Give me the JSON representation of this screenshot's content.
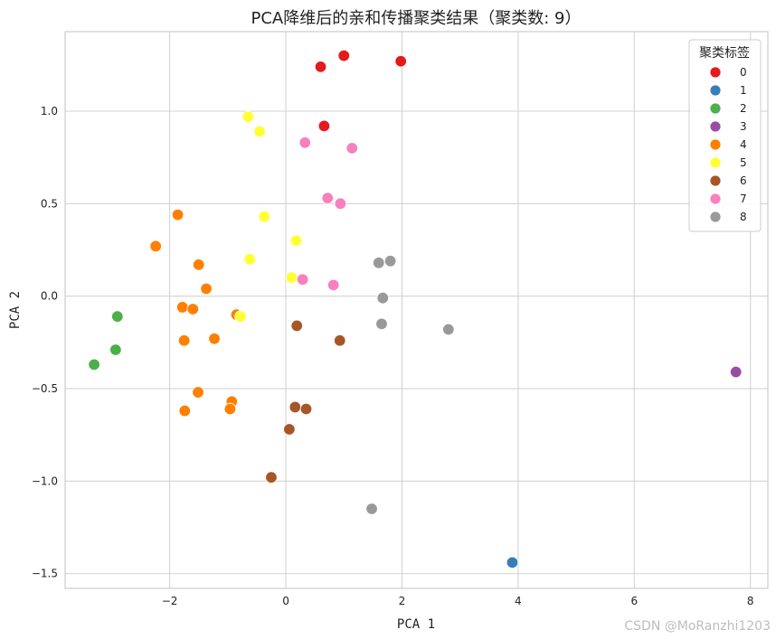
{
  "chart_data": {
    "type": "scatter",
    "title": "PCA降维后的亲和传播聚类结果（聚类数: 9）",
    "xlabel": "PCA 1",
    "ylabel": "PCA 2",
    "xlim": [
      -3.8,
      8.3
    ],
    "ylim": [
      -1.58,
      1.43
    ],
    "xticks": [
      -2,
      0,
      2,
      4,
      6,
      8
    ],
    "yticks": [
      -1.5,
      -1.0,
      -0.5,
      0.0,
      0.5,
      1.0
    ],
    "xtick_labels": [
      "−2",
      "0",
      "2",
      "4",
      "6",
      "8"
    ],
    "ytick_labels": [
      "−1.5",
      "−1.0",
      "−0.5",
      "0.0",
      "0.5",
      "1.0"
    ],
    "grid": true,
    "legend": {
      "title": "聚类标签",
      "placement": "top-right"
    },
    "series": [
      {
        "name": "0",
        "color": "#e41a1c",
        "points": [
          [
            0.6,
            1.24
          ],
          [
            1.0,
            1.3
          ],
          [
            1.98,
            1.27
          ],
          [
            0.66,
            0.92
          ]
        ]
      },
      {
        "name": "1",
        "color": "#377eb8",
        "points": [
          [
            3.9,
            -1.44
          ]
        ]
      },
      {
        "name": "2",
        "color": "#4daf4a",
        "points": [
          [
            -2.9,
            -0.11
          ],
          [
            -2.93,
            -0.29
          ],
          [
            -3.3,
            -0.37
          ]
        ]
      },
      {
        "name": "3",
        "color": "#984ea3",
        "points": [
          [
            7.75,
            -0.41
          ]
        ]
      },
      {
        "name": "4",
        "color": "#ff7f00",
        "points": [
          [
            -1.86,
            0.44
          ],
          [
            -2.24,
            0.27
          ],
          [
            -1.5,
            0.17
          ],
          [
            -1.37,
            0.04
          ],
          [
            -1.78,
            -0.06
          ],
          [
            -1.6,
            -0.07
          ],
          [
            -0.85,
            -0.1
          ],
          [
            -1.75,
            -0.24
          ],
          [
            -1.23,
            -0.23
          ],
          [
            -1.51,
            -0.52
          ],
          [
            -0.93,
            -0.57
          ],
          [
            -1.74,
            -0.62
          ],
          [
            -0.96,
            -0.61
          ]
        ]
      },
      {
        "name": "5",
        "color": "#ffff33",
        "points": [
          [
            -0.65,
            0.97
          ],
          [
            -0.45,
            0.89
          ],
          [
            -0.37,
            0.43
          ],
          [
            0.18,
            0.3
          ],
          [
            -0.62,
            0.2
          ],
          [
            0.1,
            0.1
          ],
          [
            -0.78,
            -0.11
          ]
        ]
      },
      {
        "name": "6",
        "color": "#a65628",
        "points": [
          [
            0.19,
            -0.16
          ],
          [
            0.93,
            -0.24
          ],
          [
            0.16,
            -0.6
          ],
          [
            0.35,
            -0.61
          ],
          [
            0.06,
            -0.72
          ],
          [
            -0.25,
            -0.98
          ]
        ]
      },
      {
        "name": "7",
        "color": "#f781bf",
        "points": [
          [
            0.33,
            0.83
          ],
          [
            1.14,
            0.8
          ],
          [
            0.72,
            0.53
          ],
          [
            0.94,
            0.5
          ],
          [
            0.29,
            0.09
          ],
          [
            0.82,
            0.06
          ]
        ]
      },
      {
        "name": "8",
        "color": "#999999",
        "points": [
          [
            1.6,
            0.18
          ],
          [
            1.8,
            0.19
          ],
          [
            1.67,
            -0.01
          ],
          [
            1.65,
            -0.15
          ],
          [
            2.8,
            -0.18
          ],
          [
            1.48,
            -1.15
          ]
        ]
      }
    ]
  },
  "watermark": "CSDN @MoRanzhi1203"
}
